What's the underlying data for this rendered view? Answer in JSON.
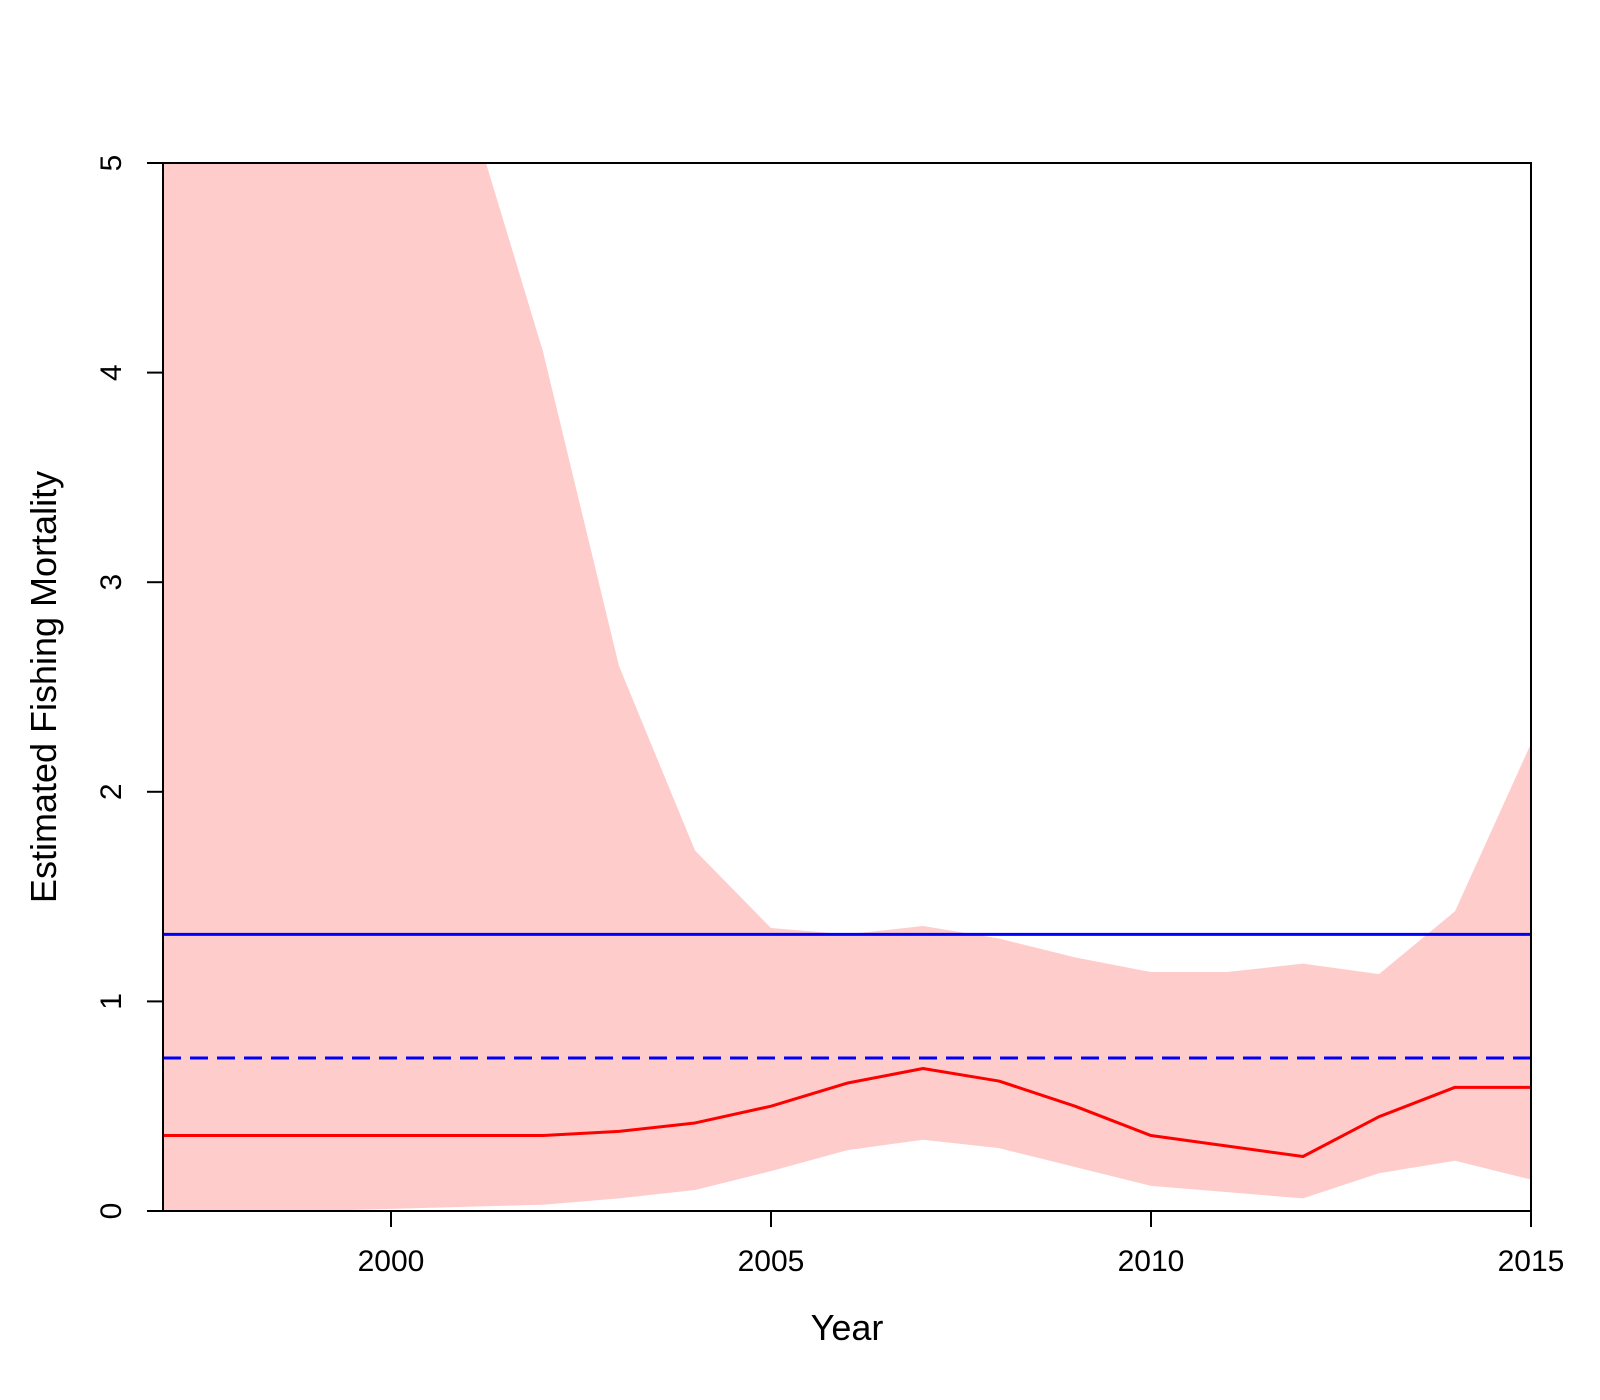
{
  "chart_data": {
    "type": "line",
    "title": "",
    "xlabel": "Year",
    "ylabel": "Estimated Fishing Mortality",
    "xlim": [
      1997,
      2015
    ],
    "ylim": [
      0,
      5
    ],
    "x_ticks": [
      2000,
      2005,
      2010,
      2015
    ],
    "y_ticks": [
      0,
      1,
      2,
      3,
      4,
      5
    ],
    "grid": false,
    "legend": "none",
    "series": [
      {
        "role": "band",
        "color": "#ffcccc",
        "x": [
          1997,
          1998,
          1999,
          2000,
          2001,
          2002,
          2003,
          2004,
          2005,
          2006,
          2007,
          2008,
          2009,
          2010,
          2011,
          2012,
          2013,
          2014,
          2015
        ],
        "upper": [
          5.6,
          5.6,
          5.6,
          5.5,
          5.3,
          4.1,
          2.6,
          1.72,
          1.35,
          1.32,
          1.36,
          1.3,
          1.21,
          1.14,
          1.14,
          1.18,
          1.13,
          1.43,
          2.23
        ],
        "lower": [
          0.0,
          0.0,
          0.0,
          0.01,
          0.02,
          0.03,
          0.06,
          0.1,
          0.19,
          0.29,
          0.34,
          0.3,
          0.21,
          0.12,
          0.09,
          0.06,
          0.18,
          0.24,
          0.15
        ]
      },
      {
        "role": "line",
        "color": "#ff0000",
        "dash": "solid",
        "x": [
          1997,
          1998,
          1999,
          2000,
          2001,
          2002,
          2003,
          2004,
          2005,
          2006,
          2007,
          2008,
          2009,
          2010,
          2011,
          2012,
          2013,
          2014,
          2015
        ],
        "values": [
          0.36,
          0.36,
          0.36,
          0.36,
          0.36,
          0.36,
          0.38,
          0.42,
          0.5,
          0.61,
          0.68,
          0.62,
          0.5,
          0.36,
          0.31,
          0.26,
          0.45,
          0.59,
          0.59
        ]
      },
      {
        "role": "hline",
        "color": "#0000ff",
        "dash": "solid",
        "y": 1.32
      },
      {
        "role": "hline",
        "color": "#0000ff",
        "dash": "dashed",
        "y": 0.73
      }
    ]
  }
}
